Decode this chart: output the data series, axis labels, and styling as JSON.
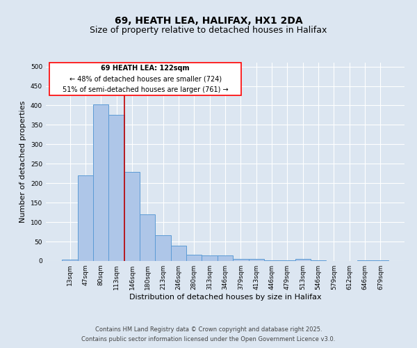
{
  "title_line1": "69, HEATH LEA, HALIFAX, HX1 2DA",
  "title_line2": "Size of property relative to detached houses in Halifax",
  "xlabel": "Distribution of detached houses by size in Halifax",
  "ylabel": "Number of detached properties",
  "categories": [
    "13sqm",
    "47sqm",
    "80sqm",
    "113sqm",
    "146sqm",
    "180sqm",
    "213sqm",
    "246sqm",
    "280sqm",
    "313sqm",
    "346sqm",
    "379sqm",
    "413sqm",
    "446sqm",
    "479sqm",
    "513sqm",
    "546sqm",
    "579sqm",
    "612sqm",
    "646sqm",
    "679sqm"
  ],
  "values": [
    3,
    221,
    402,
    375,
    229,
    120,
    67,
    40,
    17,
    15,
    14,
    6,
    5,
    1,
    1,
    6,
    1,
    0,
    0,
    2,
    2
  ],
  "bar_color": "#aec6e8",
  "bar_edge_color": "#5b9bd5",
  "background_color": "#dce6f1",
  "grid_color": "#ffffff",
  "red_line_x": 3.5,
  "annotation_title": "69 HEATH LEA: 122sqm",
  "annotation_line2": "← 48% of detached houses are smaller (724)",
  "annotation_line3": "51% of semi-detached houses are larger (761) →",
  "footer_line1": "Contains HM Land Registry data © Crown copyright and database right 2025.",
  "footer_line2": "Contains public sector information licensed under the Open Government Licence v3.0.",
  "ylim": [
    0,
    510
  ],
  "yticks": [
    0,
    50,
    100,
    150,
    200,
    250,
    300,
    350,
    400,
    450,
    500
  ],
  "title1_fontsize": 10,
  "title2_fontsize": 9,
  "xlabel_fontsize": 8,
  "ylabel_fontsize": 8,
  "tick_fontsize": 6.5,
  "footer_fontsize": 6
}
